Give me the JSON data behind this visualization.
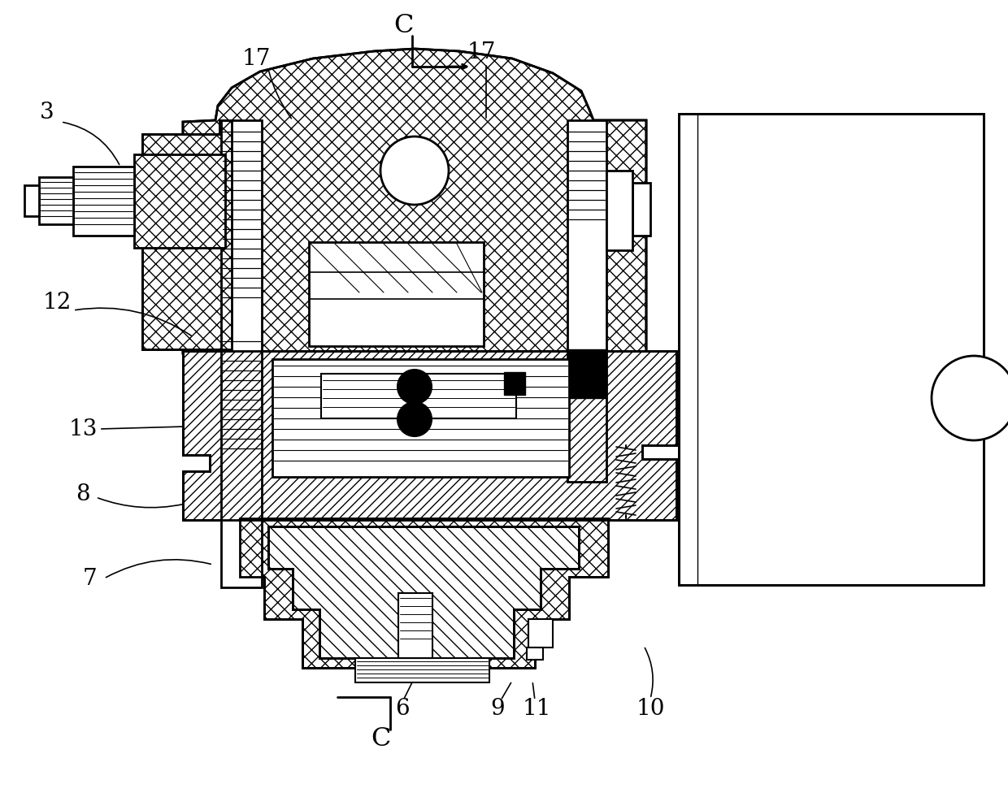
{
  "bg_color": "#ffffff",
  "line_color": "#000000",
  "figsize": [
    12.4,
    9.81
  ],
  "dpi": 100
}
